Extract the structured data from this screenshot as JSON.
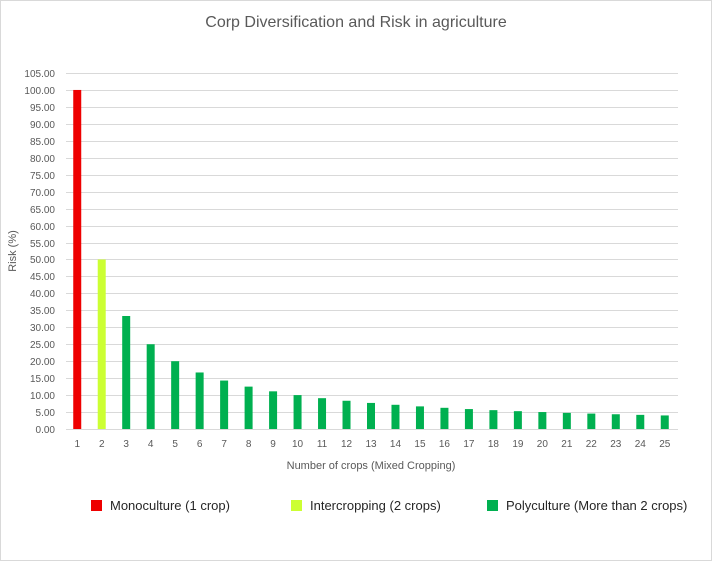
{
  "chart_data": {
    "type": "bar",
    "title": "Corp Diversification and Risk in agriculture",
    "xlabel": "Number  of crops (Mixed Cropping)",
    "ylabel": "Risk (%)",
    "ylim": [
      0,
      105
    ],
    "ytick_step": 5,
    "ytick_decimals": 2,
    "grid": true,
    "legend_position": "bottom",
    "categories": [
      "1",
      "2",
      "3",
      "4",
      "5",
      "6",
      "7",
      "8",
      "9",
      "10",
      "11",
      "12",
      "13",
      "14",
      "15",
      "16",
      "17",
      "18",
      "19",
      "20",
      "21",
      "22",
      "23",
      "24",
      "25"
    ],
    "values": [
      100,
      50,
      33.33,
      25,
      20,
      16.67,
      14.29,
      12.5,
      11.11,
      10,
      9.09,
      8.33,
      7.69,
      7.14,
      6.67,
      6.25,
      5.88,
      5.56,
      5.26,
      5,
      4.76,
      4.55,
      4.35,
      4.17,
      4
    ],
    "bar_groups": [
      0,
      1,
      2,
      2,
      2,
      2,
      2,
      2,
      2,
      2,
      2,
      2,
      2,
      2,
      2,
      2,
      2,
      2,
      2,
      2,
      2,
      2,
      2,
      2,
      2
    ],
    "legend": [
      {
        "label": "Monoculture (1 crop)",
        "color": "#ee0000"
      },
      {
        "label": "Intercropping (2 crops)",
        "color": "#ccff33"
      },
      {
        "label": "Polyculture (More than 2 crops)",
        "color": "#00b050"
      }
    ]
  },
  "colors": {
    "grid": "#d9d9d9",
    "text": "#595959"
  }
}
